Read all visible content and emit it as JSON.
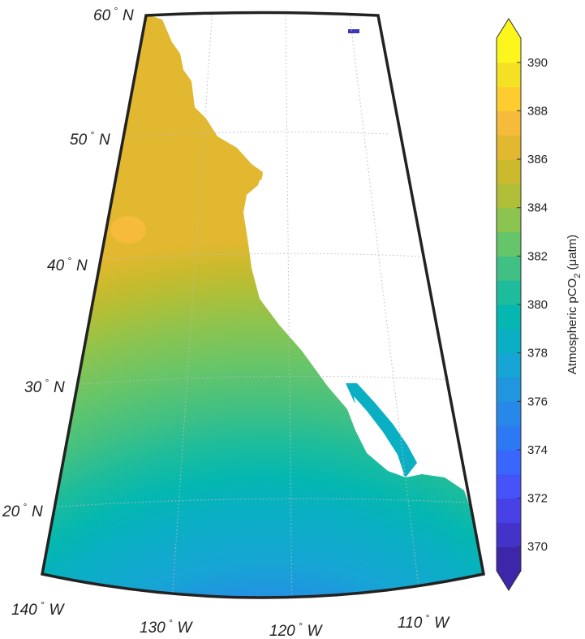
{
  "map": {
    "projection": "conic",
    "lat_range": [
      15,
      60
    ],
    "lon_range": [
      -140,
      -105
    ],
    "grid": true,
    "lat_labels": [
      {
        "value": 20,
        "text": "20",
        "hemi": "N"
      },
      {
        "value": 30,
        "text": "30",
        "hemi": "N"
      },
      {
        "value": 40,
        "text": "40",
        "hemi": "N"
      },
      {
        "value": 50,
        "text": "50",
        "hemi": "N"
      },
      {
        "value": 60,
        "text": "60",
        "hemi": "N"
      }
    ],
    "lon_labels": [
      {
        "value": -140,
        "text": "140",
        "hemi": "W"
      },
      {
        "value": -130,
        "text": "130",
        "hemi": "W"
      },
      {
        "value": -120,
        "text": "120",
        "hemi": "W"
      },
      {
        "value": -110,
        "text": "110",
        "hemi": "W"
      }
    ],
    "field": "atmospheric pCO2 over ocean; land masked white"
  },
  "colorbar": {
    "label_main": "Atmospheric pCO",
    "label_sub": "2",
    "label_unit": " (μatm)",
    "min": 369,
    "max": 391,
    "step": 1,
    "ticks": [
      "370",
      "372",
      "374",
      "376",
      "378",
      "380",
      "382",
      "384",
      "386",
      "388",
      "390"
    ],
    "extend": "both",
    "colors": [
      "#3e26a8",
      "#4433c9",
      "#4741e6",
      "#4553f8",
      "#3966fd",
      "#2d79f3",
      "#2888e9",
      "#2096df",
      "#16a5d4",
      "#0aafc4",
      "#04b7b1",
      "#1cbc9c",
      "#40c084",
      "#65c56a",
      "#8cc450",
      "#b0bf37",
      "#cbba2d",
      "#e2b830",
      "#f6bb3a",
      "#fdcd2f",
      "#f5e123",
      "#fdf61c"
    ]
  }
}
